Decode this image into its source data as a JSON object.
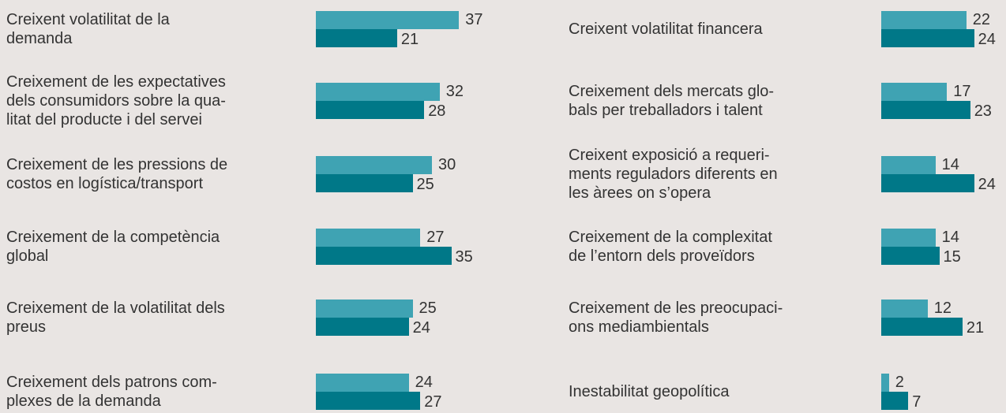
{
  "chart_data": [
    {
      "type": "bar",
      "orientation": "horizontal",
      "categories": [
        "Creixent volatilitat de la\ndemanda",
        "Creixement de les expectatives\ndels consumidors sobre la qua-\nlitat del producte i del servei",
        "Creixement de les pressions de\ncostos en logística/transport",
        "Creixement de la competència\nglobal",
        "Creixement de la volatilitat dels\npreus",
        "Creixement dels patrons com-\nplexes de la demanda"
      ],
      "series": [
        {
          "color": "#3fa3b3",
          "values": [
            37,
            32,
            30,
            27,
            25,
            24
          ]
        },
        {
          "color": "#007888",
          "values": [
            21,
            28,
            25,
            35,
            24,
            27
          ]
        }
      ]
    },
    {
      "type": "bar",
      "orientation": "horizontal",
      "categories": [
        "Creixent volatilitat financera",
        "Creixement dels mercats glo-\nbals per treballadors i talent",
        "Creixent exposició a requeri-\nments reguladors diferents en\nles àrees on s’opera",
        "Creixement de la complexitat\nde l’entorn dels proveïdors",
        "Creixement de les preocupaci-\nons mediambientals",
        "Inestabilitat geopolítica"
      ],
      "series": [
        {
          "color": "#3fa3b3",
          "values": [
            22,
            17,
            14,
            14,
            12,
            2
          ]
        },
        {
          "color": "#007888",
          "values": [
            24,
            23,
            24,
            15,
            21,
            7
          ]
        }
      ]
    }
  ]
}
